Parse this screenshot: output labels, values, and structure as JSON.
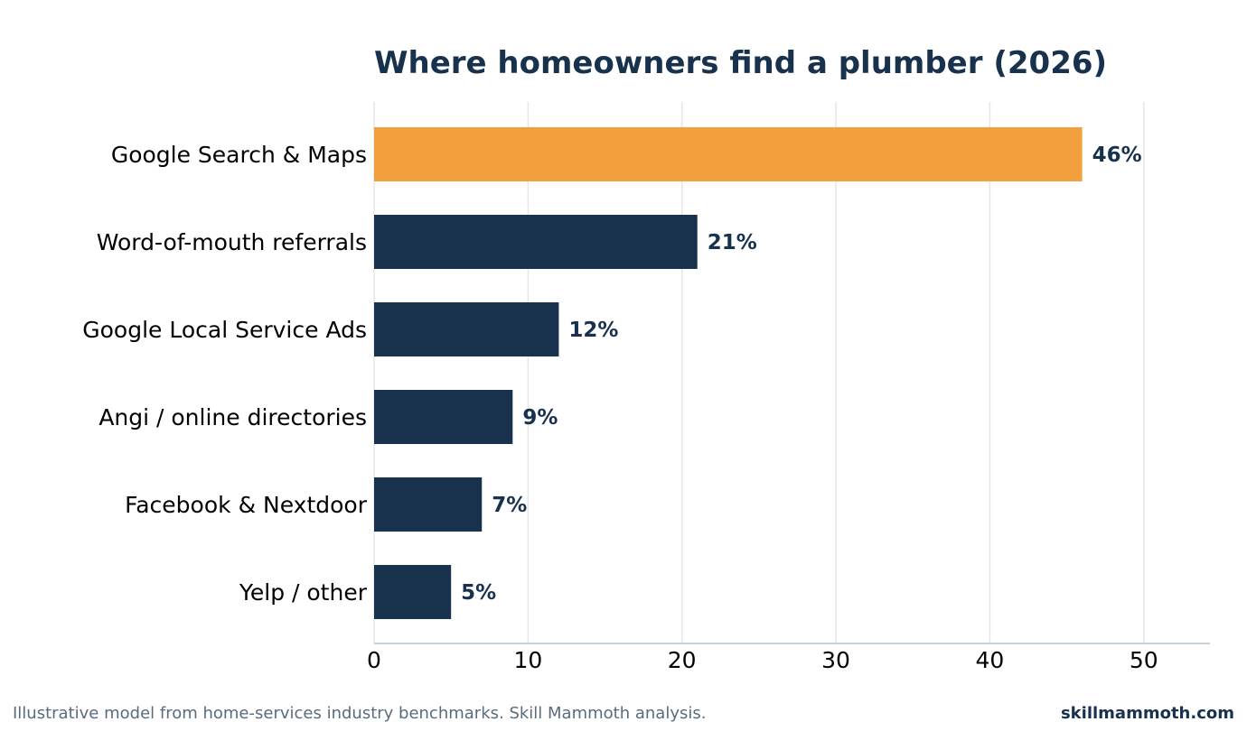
{
  "chart_data": {
    "type": "bar",
    "orientation": "horizontal",
    "title": "Where homeowners find a plumber (2026)",
    "categories": [
      "Google Search & Maps",
      "Word-of-mouth referrals",
      "Google Local Service Ads",
      "Angi / online directories",
      "Facebook & Nextdoor",
      "Yelp / other"
    ],
    "values": [
      46,
      21,
      12,
      9,
      7,
      5
    ],
    "data_labels": [
      "46%",
      "21%",
      "12%",
      "9%",
      "7%",
      "5%"
    ],
    "xlabel": "",
    "ylabel": "",
    "xlim": [
      0,
      54.3
    ],
    "xticks": [
      0,
      10,
      20,
      30,
      40,
      50
    ],
    "grid": "vertical",
    "highlight_index": 0,
    "colors": {
      "highlight": "#F2A03D",
      "bar": "#18324E",
      "title": "#18324E",
      "label": "#18324E",
      "grid": "#E6E6E6",
      "axis": "#C8D2DC"
    }
  },
  "footer": {
    "note": "Illustrative model from home-services industry benchmarks. Skill Mammoth analysis.",
    "brand": "skillmammoth.com"
  }
}
